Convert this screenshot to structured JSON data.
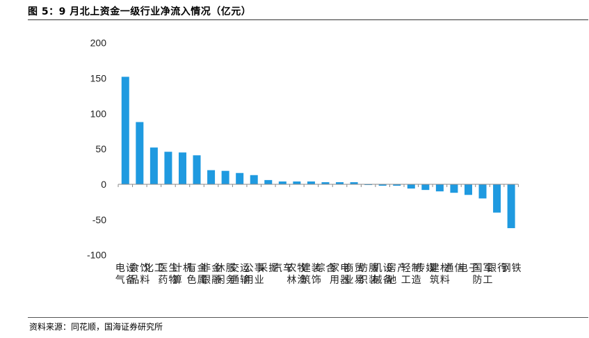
{
  "header": {
    "title": "图 5：9 月北上资金一级行业净流入情况（亿元）"
  },
  "footer": {
    "source": "资料来源：同花顺，国海证券研究所"
  },
  "chart_data": {
    "type": "bar",
    "title": "9 月北上资金一级行业净流入情况（亿元）",
    "xlabel": "",
    "ylabel": "",
    "ylim": [
      -100,
      200
    ],
    "yticks": [
      200,
      150,
      100,
      50,
      0,
      -50,
      -100
    ],
    "grid": false,
    "legend": "none",
    "bar_color": "#1f9ae0",
    "categories": [
      "电气设备",
      "食品饮料",
      "化工",
      "医药生物",
      "计算机",
      "有色金属",
      "非银金融",
      "休闲服务",
      "交通运输",
      "公用事业",
      "采掘",
      "汽车",
      "农林牧渔",
      "建筑装饰",
      "综合",
      "家用电器",
      "商业贸易",
      "纺织服装",
      "机械设备",
      "房地产",
      "轻工制造",
      "传媒",
      "建筑材料",
      "通信",
      "电子",
      "国防军工",
      "银行",
      "钢铁"
    ],
    "values": [
      152,
      88,
      52,
      46,
      45,
      41,
      20,
      19,
      16,
      13,
      6,
      4,
      4,
      4,
      3,
      3,
      3,
      -1,
      -2,
      -2,
      -6,
      -8,
      -10,
      -12,
      -15,
      -20,
      -40,
      -62
    ]
  }
}
